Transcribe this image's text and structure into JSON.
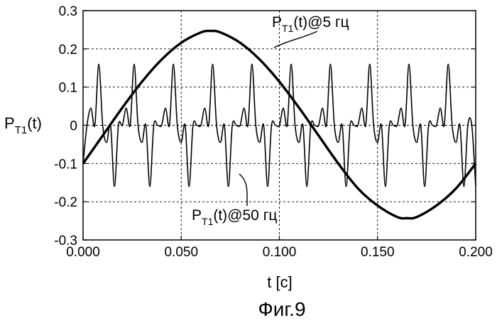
{
  "chart_data": {
    "type": "line",
    "xlabel": "t [с]",
    "ylabel": "P",
    "ylabel_sub": "T1",
    "ylabel_rest": "(t)",
    "xlim": [
      0,
      0.2
    ],
    "ylim": [
      -0.3,
      0.3
    ],
    "xticks": [
      0,
      0.05,
      0.1,
      0.15,
      0.2
    ],
    "xtick_labels": [
      "0.000",
      "0.050",
      "0.100",
      "0.150",
      "0.200"
    ],
    "yticks": [
      -0.3,
      -0.2,
      -0.1,
      0,
      0.1,
      0.2,
      0.3
    ],
    "ytick_labels": [
      "-0.3",
      "-0.2",
      "-0.1",
      "0",
      "0.1",
      "0.2",
      "0.3"
    ],
    "grid": true,
    "caption": "Фиг.9",
    "series": [
      {
        "label_main": "P",
        "label_sub": "T1",
        "label_rest": "(t)@5 гц",
        "x": [
          0,
          0.01,
          0.02,
          0.03,
          0.04,
          0.05,
          0.06,
          0.065,
          0.07,
          0.08,
          0.09,
          0.1,
          0.11,
          0.12,
          0.13,
          0.14,
          0.15,
          0.16,
          0.165,
          0.17,
          0.18,
          0.19,
          0.2
        ],
        "y": [
          -0.1,
          -0.027,
          0.046,
          0.114,
          0.172,
          0.216,
          0.243,
          0.247,
          0.243,
          0.216,
          0.172,
          0.114,
          0.046,
          -0.027,
          -0.1,
          -0.165,
          -0.21,
          -0.24,
          -0.243,
          -0.24,
          -0.21,
          -0.165,
          -0.1
        ]
      },
      {
        "label_main": "P",
        "label_sub": "T1",
        "label_rest": "(t)@50 гц",
        "x": [
          0,
          0.002,
          0.004,
          0.006,
          0.008,
          0.01,
          0.012,
          0.014,
          0.016,
          0.018,
          0.02,
          0.022,
          0.024,
          0.026,
          0.028,
          0.03,
          0.032,
          0.034,
          0.036,
          0.038,
          0.04,
          0.042,
          0.044,
          0.046,
          0.048,
          0.05,
          0.052,
          0.054,
          0.056,
          0.058,
          0.06,
          0.062,
          0.064,
          0.066,
          0.068,
          0.07,
          0.072,
          0.074,
          0.076,
          0.078,
          0.08,
          0.082,
          0.084,
          0.086,
          0.088,
          0.09,
          0.092,
          0.094,
          0.096,
          0.098,
          0.1,
          0.102,
          0.104,
          0.106,
          0.108,
          0.11,
          0.112,
          0.114,
          0.116,
          0.118,
          0.12,
          0.122,
          0.124,
          0.126,
          0.128,
          0.13,
          0.132,
          0.134,
          0.136,
          0.138,
          0.14,
          0.142,
          0.144,
          0.146,
          0.148,
          0.15,
          0.152,
          0.154,
          0.156,
          0.158,
          0.16,
          0.162,
          0.164,
          0.166,
          0.168,
          0.17,
          0.172,
          0.174,
          0.176,
          0.178,
          0.18,
          0.182,
          0.184,
          0.186,
          0.188,
          0.19,
          0.192,
          0.194,
          0.196,
          0.198,
          0.2
        ],
        "y": [
          -0.1,
          0.0,
          0.045,
          0.0,
          0.16,
          0.0,
          -0.045,
          0.0,
          -0.16,
          0.0,
          0.0,
          0.045,
          0.0,
          0.16,
          0.0,
          -0.045,
          0.0,
          -0.16,
          0.0,
          0.0,
          0.0,
          0.045,
          0.0,
          0.16,
          0.0,
          -0.045,
          0.0,
          -0.16,
          0.0,
          0.0,
          0.0,
          0.045,
          0.0,
          0.16,
          0.0,
          -0.045,
          0.0,
          -0.16,
          0.0,
          0.0,
          0.0,
          0.045,
          0.0,
          0.16,
          0.0,
          -0.045,
          0.0,
          -0.16,
          0.0,
          0.0,
          0.0,
          0.045,
          0.0,
          0.16,
          0.0,
          -0.045,
          0.0,
          -0.16,
          0.0,
          0.0,
          0.0,
          0.045,
          0.0,
          0.16,
          0.0,
          -0.045,
          0.0,
          -0.16,
          0.0,
          0.0,
          0.0,
          0.045,
          0.0,
          0.16,
          0.0,
          -0.045,
          0.0,
          -0.16,
          0.0,
          0.0,
          0.0,
          0.045,
          0.0,
          0.16,
          0.0,
          -0.045,
          0.0,
          -0.16,
          0.0,
          0.0,
          0.0,
          0.045,
          0.0,
          0.16,
          0.0,
          -0.045,
          0.0,
          -0.16,
          0.0,
          0.0,
          -0.16
        ]
      }
    ]
  }
}
